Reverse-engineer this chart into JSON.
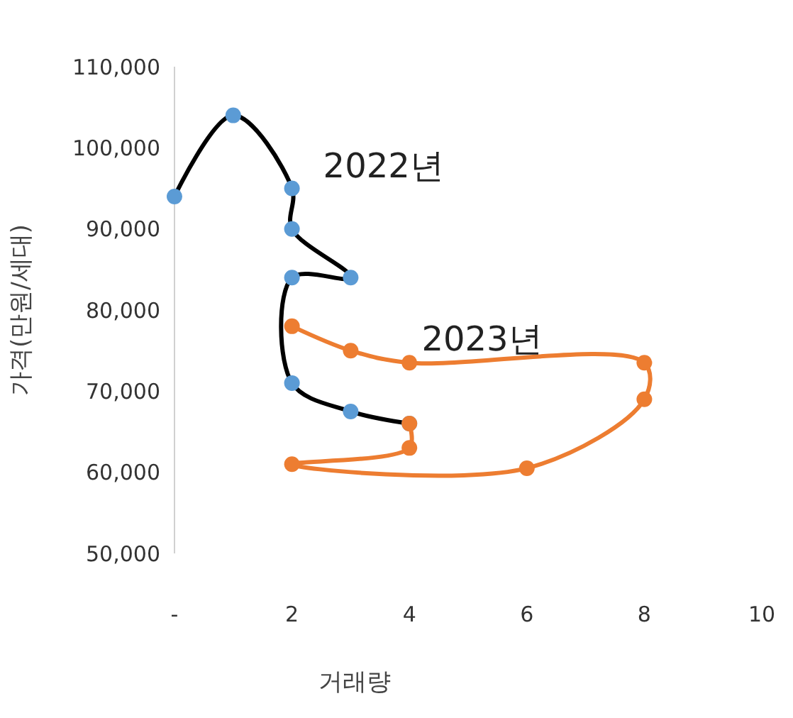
{
  "chart_data": {
    "type": "line",
    "xlabel": "거래량",
    "ylabel": "가격(만원/세대)",
    "xlim": [
      0,
      10
    ],
    "xticks": [
      {
        "value": 0,
        "label": "-"
      },
      2,
      4,
      6,
      8,
      10
    ],
    "ylim": [
      50000,
      110000
    ],
    "yticks": [
      {
        "value": 50000,
        "label": "50,000"
      },
      {
        "value": 60000,
        "label": "60,000"
      },
      {
        "value": 70000,
        "label": "70,000"
      },
      {
        "value": 80000,
        "label": "80,000"
      },
      {
        "value": 90000,
        "label": "90,000"
      },
      {
        "value": 100000,
        "label": "100,000"
      },
      {
        "value": 110000,
        "label": "110,000"
      }
    ],
    "grid": false,
    "marker": "circle",
    "line_style": "solid",
    "series": [
      {
        "name": "2022년",
        "color": "#000000",
        "colors": [
          "#5b9bd5",
          "#5b9bd5",
          "#5b9bd5",
          "#5b9bd5",
          "#5b9bd5",
          "#5b9bd5",
          "#5b9bd5",
          "#5b9bd5",
          "#5b9bd5"
        ],
        "x": [
          0,
          1,
          2,
          2,
          3,
          2,
          2,
          3,
          4
        ],
        "values": [
          94000,
          104000,
          95000,
          90000,
          84000,
          84000,
          71000,
          67500,
          66000
        ]
      },
      {
        "name": "2023년",
        "color": "#ed7d31",
        "colors": [
          "#ed7d31",
          "#ed7d31",
          "#ed7d31",
          "#ed7d31",
          "#ed7d31",
          "#ed7d31",
          "#ed7d31",
          "#ed7d31",
          "#ed7d31"
        ],
        "x": [
          2,
          3,
          4,
          8,
          8,
          6,
          2,
          4,
          4
        ],
        "values": [
          78000,
          75000,
          73500,
          73500,
          69000,
          60500,
          61000,
          63000,
          66000
        ]
      }
    ]
  }
}
